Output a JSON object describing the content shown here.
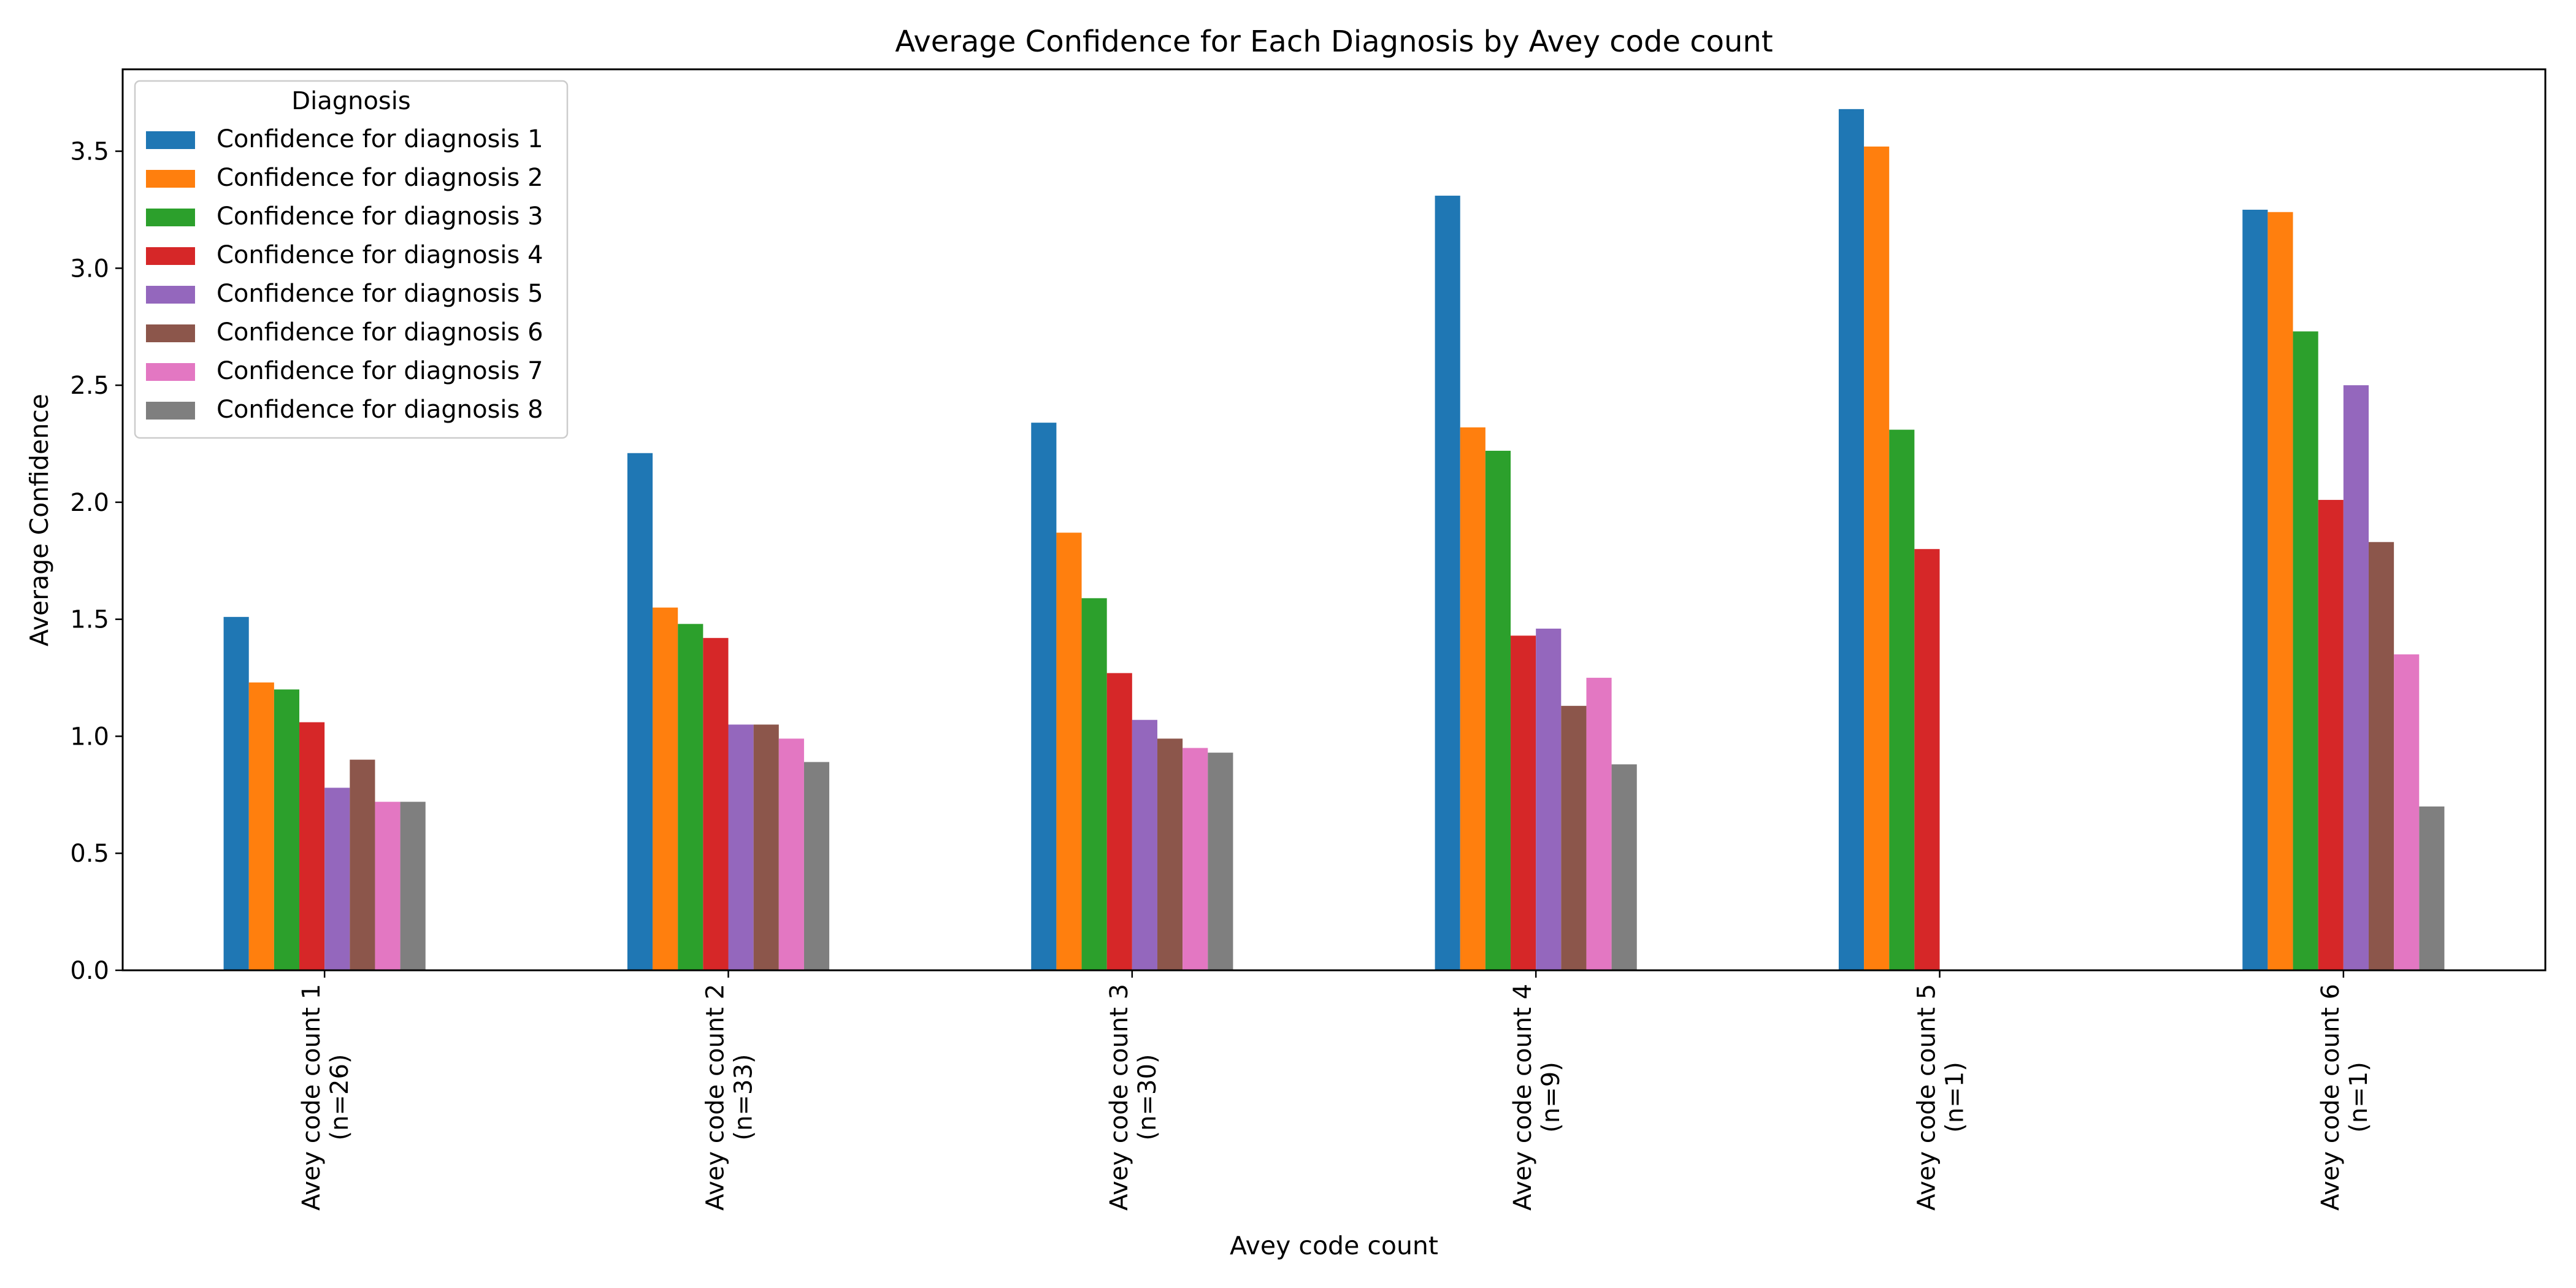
{
  "chart_data": {
    "type": "bar",
    "title": "Average Confidence for Each Diagnosis by Avey code count",
    "xlabel": "Avey code count",
    "ylabel": "Average Confidence",
    "ylim": [
      0,
      3.85
    ],
    "yticks": [
      "0.0",
      "0.5",
      "1.0",
      "1.5",
      "2.0",
      "2.5",
      "3.0",
      "3.5"
    ],
    "grid": false,
    "legend": {
      "title": "Diagnosis",
      "placement": "top-left"
    },
    "categories": [
      {
        "line1": "Avey code count 1",
        "line2": "(n=26)"
      },
      {
        "line1": "Avey code count 2",
        "line2": "(n=33)"
      },
      {
        "line1": "Avey code count 3",
        "line2": "(n=30)"
      },
      {
        "line1": "Avey code count 4",
        "line2": "(n=9)"
      },
      {
        "line1": "Avey code count 5",
        "line2": "(n=1)"
      },
      {
        "line1": "Avey code count 6",
        "line2": "(n=1)"
      }
    ],
    "series": [
      {
        "name": "Confidence for diagnosis 1",
        "color": "#1f77b4",
        "values": [
          1.51,
          2.21,
          2.34,
          3.31,
          3.68,
          3.25
        ]
      },
      {
        "name": "Confidence for diagnosis 2",
        "color": "#ff7f0e",
        "values": [
          1.23,
          1.55,
          1.87,
          2.32,
          3.52,
          3.24
        ]
      },
      {
        "name": "Confidence for diagnosis 3",
        "color": "#2ca02c",
        "values": [
          1.2,
          1.48,
          1.59,
          2.22,
          2.31,
          2.73
        ]
      },
      {
        "name": "Confidence for diagnosis 4",
        "color": "#d62728",
        "values": [
          1.06,
          1.42,
          1.27,
          1.43,
          1.8,
          2.01
        ]
      },
      {
        "name": "Confidence for diagnosis 5",
        "color": "#9467bd",
        "values": [
          0.78,
          1.05,
          1.07,
          1.46,
          null,
          2.5
        ]
      },
      {
        "name": "Confidence for diagnosis 6",
        "color": "#8c564b",
        "values": [
          0.9,
          1.05,
          0.99,
          1.13,
          null,
          1.83
        ]
      },
      {
        "name": "Confidence for diagnosis 7",
        "color": "#e377c2",
        "values": [
          0.72,
          0.99,
          0.95,
          1.25,
          null,
          1.35
        ]
      },
      {
        "name": "Confidence for diagnosis 8",
        "color": "#7f7f7f",
        "values": [
          0.72,
          0.89,
          0.93,
          0.88,
          null,
          0.7
        ]
      }
    ]
  }
}
